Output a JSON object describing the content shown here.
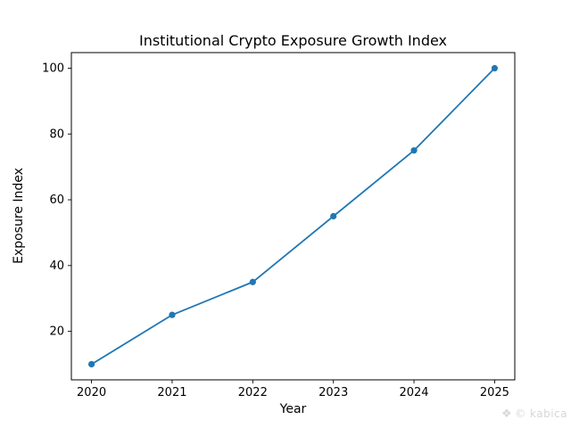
{
  "chart_data": {
    "type": "line",
    "title": "Institutional Crypto Exposure Growth Index",
    "xlabel": "Year",
    "ylabel": "Exposure Index",
    "categories": [
      2020,
      2021,
      2022,
      2023,
      2024,
      2025
    ],
    "series": [
      {
        "name": "Exposure Index",
        "values": [
          10,
          25,
          35,
          55,
          75,
          100
        ]
      }
    ],
    "yticks": [
      20,
      40,
      60,
      80,
      100
    ],
    "xlim": [
      2019.75,
      2025.25
    ],
    "ylim": [
      5.25,
      104.75
    ],
    "grid": false,
    "legend_position": "none",
    "line_color": "#1f77b4",
    "marker": "circle",
    "background_color": "#ffffff",
    "axis_color": "#000000"
  },
  "watermark": {
    "icon": "❖",
    "text": "© kabica",
    "color": "#d7d7d7"
  }
}
